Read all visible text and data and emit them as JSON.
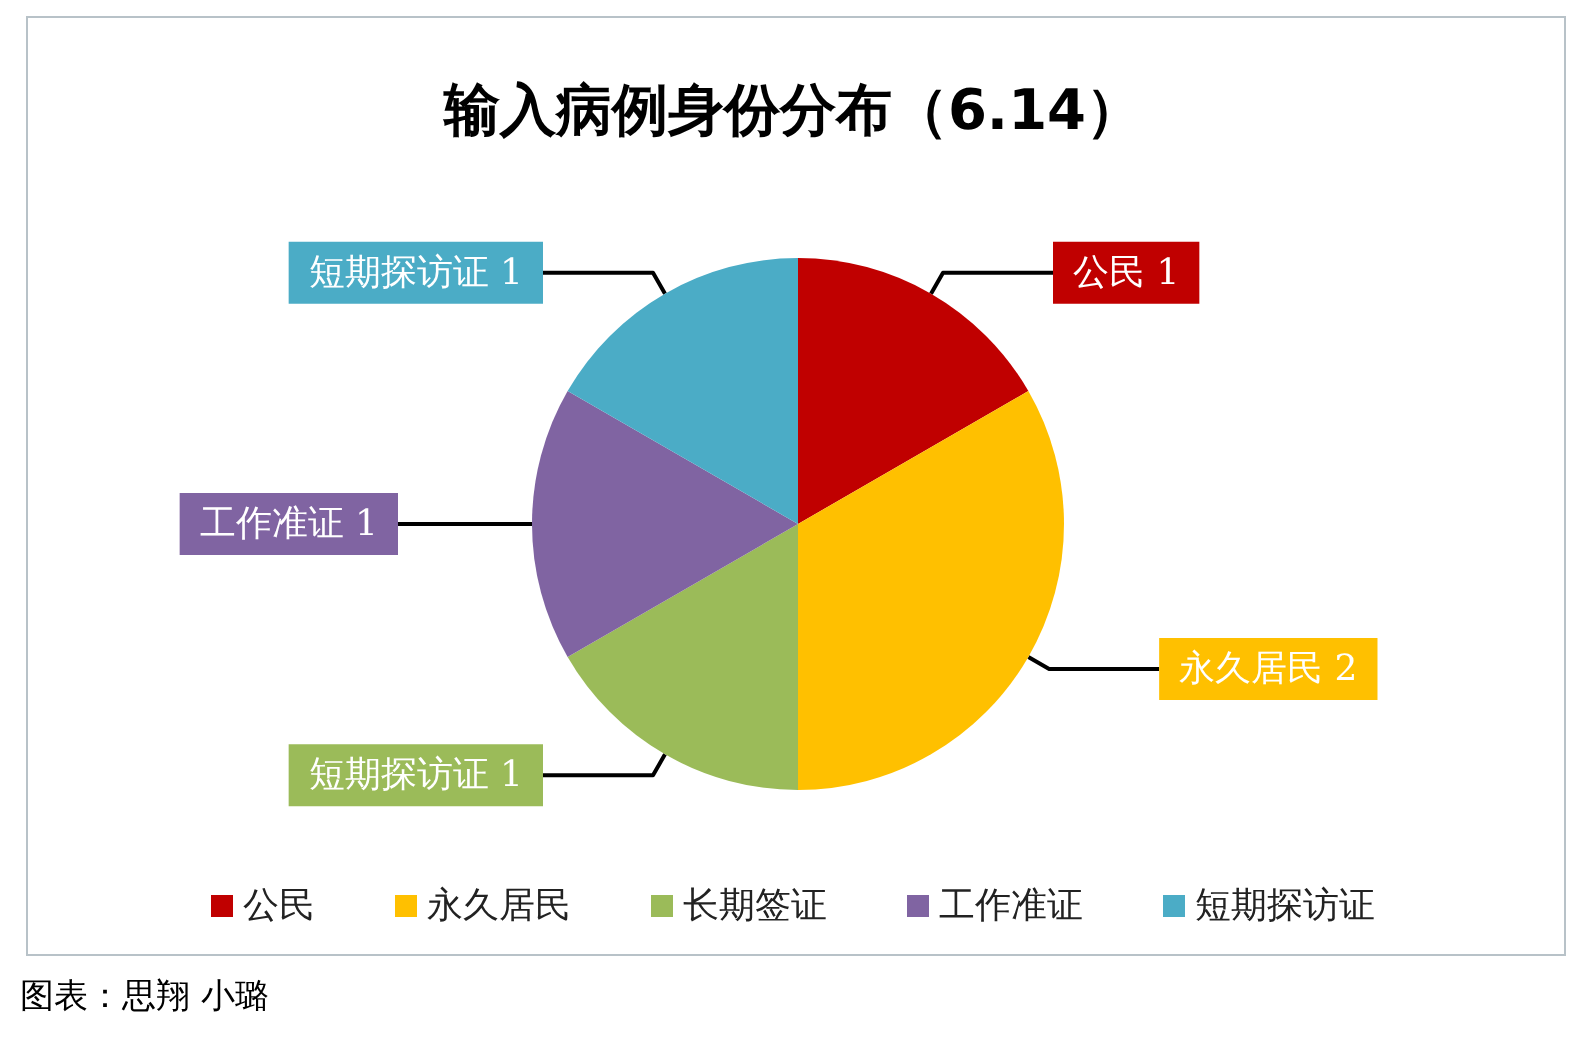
{
  "chart_data": {
    "type": "pie",
    "title": "输入病例身份分布（6.14）",
    "categories": [
      "公民",
      "永久居民",
      "长期签证",
      "工作准证",
      "短期探访证"
    ],
    "values": [
      1,
      2,
      1,
      1,
      1
    ],
    "colors": [
      "#c00000",
      "#ffc000",
      "#9bbb59",
      "#8064a2",
      "#4bacc6"
    ],
    "value_labels": [
      "公民 1",
      "永久居民 2",
      "短期探访证 1",
      "工作准证 1",
      "短期探访证 1"
    ],
    "legend": "bottom",
    "annotations": [
      "图表：思翔 小璐"
    ]
  }
}
